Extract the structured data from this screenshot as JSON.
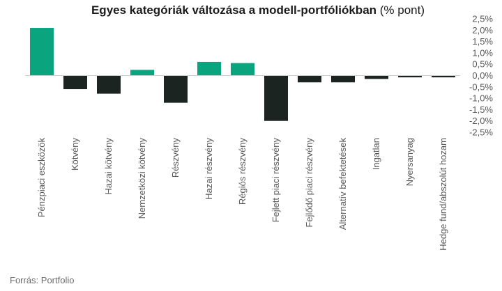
{
  "title": {
    "bold": "Egyes kategóriák változása a modell-portfóliókban",
    "normal": "(% pont)"
  },
  "source": "Forrás: Portfolio",
  "colors": {
    "positive": "#0aa57e",
    "negative": "#1c2421",
    "axis_text": "#5a5a5a"
  },
  "chart_data": {
    "type": "bar",
    "title": "Egyes kategóriák változása a modell-portfóliókban (% pont)",
    "categories": [
      "Pénzpiaci eszközök",
      "Kötvény",
      "Hazai kötvény",
      "Nemzetközi kötvény",
      "Részvény",
      "Hazai részvény",
      "Régiós részvény",
      "Fejlett piaci részvény",
      "Fejlődő piaci részvény",
      "Alternatív befektetések",
      "Ingatlan",
      "Nyersanyag",
      "Hedge fund/abszolút hozam"
    ],
    "values": [
      2.1,
      -0.6,
      -0.8,
      0.25,
      -1.2,
      0.6,
      0.55,
      -2.0,
      -0.3,
      -0.3,
      -0.15,
      -0.08,
      -0.08
    ],
    "ylim": [
      -2.5,
      2.5
    ],
    "yticks": [
      "2,5%",
      "2,0%",
      "1,5%",
      "1,0%",
      "0,5%",
      "0,0%",
      "-0,5%",
      "-1,0%",
      "-1,5%",
      "-2,0%",
      "-2,5%"
    ],
    "ytick_values": [
      2.5,
      2.0,
      1.5,
      1.0,
      0.5,
      0.0,
      -0.5,
      -1.0,
      -1.5,
      -2.0,
      -2.5
    ],
    "y_axis_side": "right",
    "grid": false,
    "legend": "none"
  }
}
